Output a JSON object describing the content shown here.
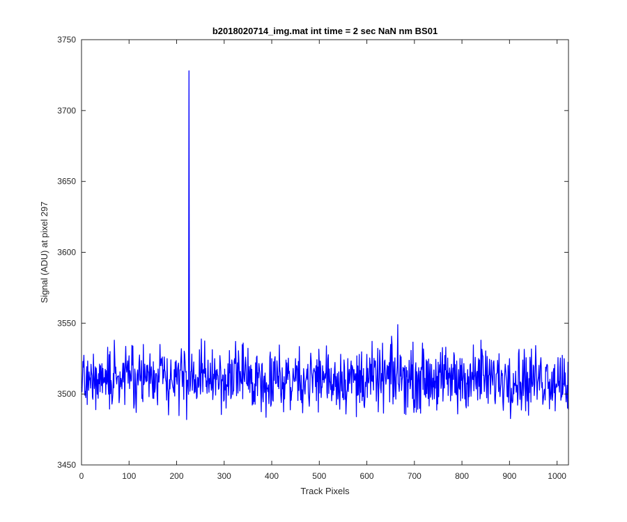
{
  "chart_data": {
    "type": "line",
    "title": "b2018020714_img.mat int time = 2 sec  NaN nm BS01",
    "xlabel": "Track Pixels",
    "ylabel": "Signal (ADU) at pixel 297",
    "xlim": [
      0,
      1024
    ],
    "ylim": [
      3450,
      3750
    ],
    "xticks": [
      0,
      100,
      200,
      300,
      400,
      500,
      600,
      700,
      800,
      900,
      1000
    ],
    "yticks": [
      3450,
      3500,
      3550,
      3600,
      3650,
      3700,
      3750
    ],
    "grid": false,
    "line_color": "#0000ff",
    "noise_baseline": 3511,
    "noise_amplitude": 12,
    "series": [
      {
        "points": [
          [
            0,
            3505
          ],
          [
            3,
            3523
          ],
          [
            10,
            3512
          ],
          [
            20,
            3521
          ],
          [
            30,
            3489
          ],
          [
            40,
            3520
          ],
          [
            55,
            3533
          ],
          [
            60,
            3530
          ],
          [
            80,
            3498
          ],
          [
            100,
            3527
          ],
          [
            110,
            3490
          ],
          [
            115,
            3487
          ],
          [
            130,
            3535
          ],
          [
            150,
            3497
          ],
          [
            165,
            3535
          ],
          [
            180,
            3525
          ],
          [
            200,
            3510
          ],
          [
            210,
            3532
          ],
          [
            224,
            3505
          ],
          [
            226,
            3728
          ],
          [
            228,
            3502
          ],
          [
            250,
            3500
          ],
          [
            280,
            3525
          ],
          [
            300,
            3496
          ],
          [
            340,
            3536
          ],
          [
            400,
            3525
          ],
          [
            420,
            3494
          ],
          [
            450,
            3525
          ],
          [
            470,
            3500
          ],
          [
            500,
            3522
          ],
          [
            515,
            3534
          ],
          [
            550,
            3500
          ],
          [
            578,
            3484
          ],
          [
            600,
            3528
          ],
          [
            620,
            3495
          ],
          [
            650,
            3535
          ],
          [
            665,
            3549
          ],
          [
            680,
            3520
          ],
          [
            700,
            3496
          ],
          [
            720,
            3525
          ],
          [
            740,
            3505
          ],
          [
            760,
            3495
          ],
          [
            791,
            3486
          ],
          [
            800,
            3525
          ],
          [
            840,
            3538
          ],
          [
            860,
            3500
          ],
          [
            900,
            3525
          ],
          [
            940,
            3485
          ],
          [
            960,
            3510
          ],
          [
            980,
            3520
          ],
          [
            1000,
            3505
          ],
          [
            1015,
            3525
          ],
          [
            1018,
            3502
          ],
          [
            1020,
            3500
          ],
          [
            1022,
            3490
          ],
          [
            1024,
            3489
          ]
        ]
      }
    ]
  }
}
